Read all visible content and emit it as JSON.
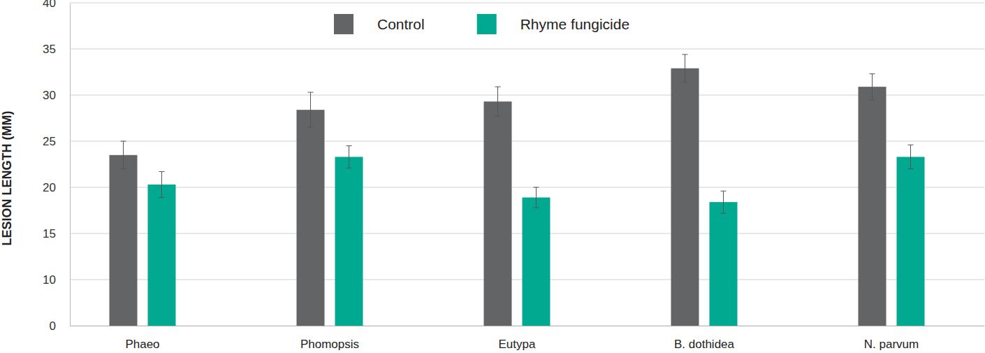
{
  "chart_data": {
    "type": "bar",
    "y_label": "LESION LENGTH (MM)",
    "categories": [
      "Phaeo",
      "Phomopsis",
      "Eutypa",
      "B. dothidea",
      "N. parvum"
    ],
    "series": [
      {
        "name": "Control",
        "color": "#636466",
        "values": [
          23.5,
          28.4,
          29.3,
          32.9,
          30.9
        ],
        "errors": [
          1.5,
          1.9,
          1.6,
          1.5,
          1.4
        ]
      },
      {
        "name": "Rhyme fungicide",
        "color": "#00a98f",
        "values": [
          20.3,
          23.3,
          18.9,
          18.4,
          23.3
        ],
        "errors": [
          1.4,
          1.2,
          1.1,
          1.2,
          1.3
        ]
      }
    ],
    "ylim": [
      0,
      40
    ],
    "yticks": [
      0,
      10,
      15,
      20,
      25,
      30,
      35,
      40
    ],
    "grid": true,
    "legend": "top"
  }
}
